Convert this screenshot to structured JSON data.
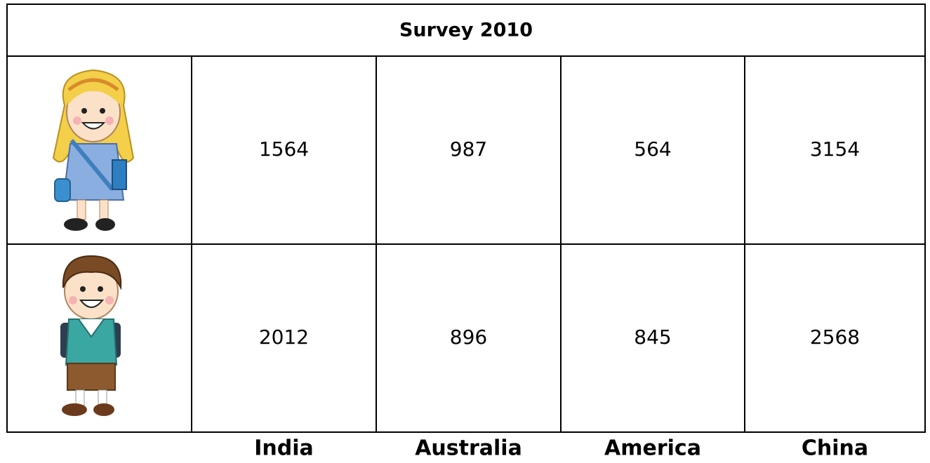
{
  "table": {
    "title": "Survey 2010",
    "rows": [
      [
        1564,
        987,
        564,
        3154
      ],
      [
        2012,
        896,
        845,
        2568
      ]
    ],
    "columns": [
      "India",
      "Australia",
      "America",
      "China"
    ]
  }
}
